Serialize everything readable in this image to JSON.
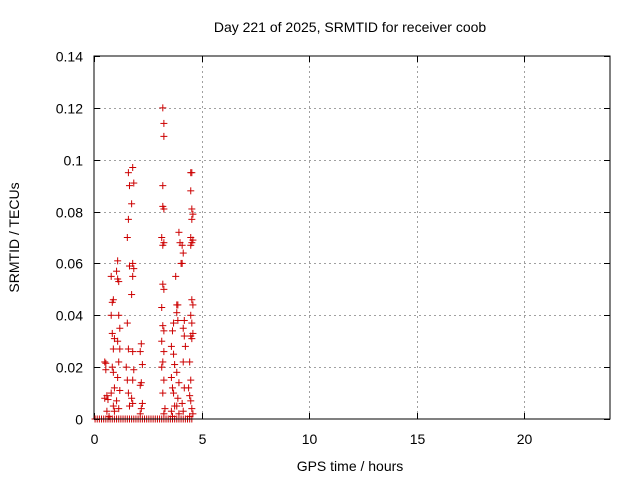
{
  "chart_data": {
    "type": "scatter",
    "title": "Day 221 of 2025, SRMTID for receiver coob",
    "xlabel": "GPS time / hours",
    "ylabel": "SRMTID / TECUs",
    "xlim": [
      0,
      24
    ],
    "ylim": [
      0,
      0.14
    ],
    "x_ticks": [
      0,
      5,
      10,
      15,
      20
    ],
    "y_ticks": [
      0,
      0.02,
      0.04,
      0.06,
      0.08,
      0.1,
      0.12,
      0.14
    ],
    "x_tick_labels": [
      "0",
      "5",
      "10",
      "15",
      "20"
    ],
    "y_tick_labels": [
      "0",
      "0.02",
      "0.04",
      "0.06",
      "0.08",
      "0.1",
      "0.12",
      "0.14"
    ],
    "grid": true,
    "marker": "+",
    "marker_color": "#cc0000",
    "series": [
      {
        "name": "SRMTID",
        "points": [
          [
            0.05,
            0
          ],
          [
            0.15,
            0
          ],
          [
            0.25,
            0
          ],
          [
            0.35,
            0
          ],
          [
            0.45,
            0
          ],
          [
            0.55,
            0
          ],
          [
            0.65,
            0
          ],
          [
            0.75,
            0
          ],
          [
            0.85,
            0
          ],
          [
            0.95,
            0
          ],
          [
            1.05,
            0
          ],
          [
            1.15,
            0
          ],
          [
            1.25,
            0
          ],
          [
            1.35,
            0
          ],
          [
            1.45,
            0
          ],
          [
            1.55,
            0
          ],
          [
            1.65,
            0
          ],
          [
            1.75,
            0
          ],
          [
            1.85,
            0
          ],
          [
            1.95,
            0
          ],
          [
            2.05,
            0
          ],
          [
            2.15,
            0
          ],
          [
            2.25,
            0
          ],
          [
            2.35,
            0
          ],
          [
            2.45,
            0
          ],
          [
            2.55,
            0
          ],
          [
            2.65,
            0
          ],
          [
            2.75,
            0
          ],
          [
            2.85,
            0
          ],
          [
            2.95,
            0
          ],
          [
            3.05,
            0
          ],
          [
            3.15,
            0
          ],
          [
            3.25,
            0
          ],
          [
            3.35,
            0
          ],
          [
            3.45,
            0
          ],
          [
            3.55,
            0
          ],
          [
            3.65,
            0
          ],
          [
            3.75,
            0
          ],
          [
            3.85,
            0
          ],
          [
            3.95,
            0
          ],
          [
            4.05,
            0
          ],
          [
            4.15,
            0
          ],
          [
            4.25,
            0
          ],
          [
            4.35,
            0
          ],
          [
            4.45,
            0
          ],
          [
            4.55,
            0
          ],
          [
            0.5,
            0.022
          ],
          [
            0.55,
            0.019
          ],
          [
            0.6,
            0.009
          ],
          [
            0.5,
            0.008
          ],
          [
            0.65,
            0.0075
          ],
          [
            0.7,
            0.001
          ],
          [
            0.6,
            0.003
          ],
          [
            0.55,
            0.0215
          ],
          [
            0.8,
            0.055
          ],
          [
            0.85,
            0.045
          ],
          [
            0.8,
            0.04
          ],
          [
            0.9,
            0.046
          ],
          [
            0.85,
            0.033
          ],
          [
            0.9,
            0.027
          ],
          [
            0.95,
            0.031
          ],
          [
            0.85,
            0.02
          ],
          [
            0.9,
            0.018
          ],
          [
            0.95,
            0.012
          ],
          [
            0.8,
            0.01
          ],
          [
            0.9,
            0.005
          ],
          [
            0.95,
            0.003
          ],
          [
            1.1,
            0.061
          ],
          [
            1.05,
            0.057
          ],
          [
            1.1,
            0.054
          ],
          [
            1.15,
            0.053
          ],
          [
            1.15,
            0.04
          ],
          [
            1.2,
            0.035
          ],
          [
            1.1,
            0.03
          ],
          [
            1.2,
            0.027
          ],
          [
            1.15,
            0.022
          ],
          [
            1.1,
            0.016
          ],
          [
            1.2,
            0.011
          ],
          [
            1.05,
            0.007
          ],
          [
            1.15,
            0.004
          ],
          [
            1.6,
            0.095
          ],
          [
            1.65,
            0.09
          ],
          [
            1.6,
            0.077
          ],
          [
            1.55,
            0.07
          ],
          [
            1.65,
            0.059
          ],
          [
            1.55,
            0.037
          ],
          [
            1.6,
            0.027
          ],
          [
            1.5,
            0.02
          ],
          [
            1.55,
            0.015
          ],
          [
            1.6,
            0.01
          ],
          [
            1.65,
            0.005
          ],
          [
            1.8,
            0.097
          ],
          [
            1.85,
            0.091
          ],
          [
            1.75,
            0.083
          ],
          [
            1.8,
            0.06
          ],
          [
            1.85,
            0.058
          ],
          [
            1.8,
            0.055
          ],
          [
            1.75,
            0.048
          ],
          [
            1.8,
            0.026
          ],
          [
            1.85,
            0.019
          ],
          [
            1.8,
            0.015
          ],
          [
            1.75,
            0.008
          ],
          [
            1.8,
            0.006
          ],
          [
            2.2,
            0.029
          ],
          [
            2.15,
            0.026
          ],
          [
            2.25,
            0.021
          ],
          [
            2.2,
            0.014
          ],
          [
            2.15,
            0.013
          ],
          [
            2.25,
            0.006
          ],
          [
            2.2,
            0.004
          ],
          [
            2.15,
            0.002
          ],
          [
            3.2,
            0.12
          ],
          [
            3.25,
            0.114
          ],
          [
            3.25,
            0.109
          ],
          [
            3.2,
            0.09
          ],
          [
            3.2,
            0.082
          ],
          [
            3.25,
            0.081
          ],
          [
            3.15,
            0.07
          ],
          [
            3.25,
            0.068
          ],
          [
            3.2,
            0.067
          ],
          [
            3.2,
            0.052
          ],
          [
            3.25,
            0.05
          ],
          [
            3.15,
            0.043
          ],
          [
            3.2,
            0.036
          ],
          [
            3.25,
            0.034
          ],
          [
            3.15,
            0.03
          ],
          [
            3.25,
            0.026
          ],
          [
            3.2,
            0.022
          ],
          [
            3.15,
            0.02
          ],
          [
            3.25,
            0.015
          ],
          [
            3.2,
            0.01
          ],
          [
            3.3,
            0.004
          ],
          [
            3.25,
            0.002
          ],
          [
            3.7,
            0.037
          ],
          [
            3.65,
            0.034
          ],
          [
            3.6,
            0.028
          ],
          [
            3.7,
            0.025
          ],
          [
            3.75,
            0.021
          ],
          [
            3.6,
            0.016
          ],
          [
            3.65,
            0.012
          ],
          [
            3.7,
            0.01
          ],
          [
            3.75,
            0.005
          ],
          [
            3.6,
            0.003
          ],
          [
            3.65,
            0.001
          ],
          [
            3.8,
            0.055
          ],
          [
            3.85,
            0.044
          ],
          [
            3.9,
            0.044
          ],
          [
            3.85,
            0.041
          ],
          [
            3.9,
            0.038
          ],
          [
            3.85,
            0.018
          ],
          [
            3.95,
            0.014
          ],
          [
            3.9,
            0.008
          ],
          [
            3.85,
            0.005
          ],
          [
            3.95,
            0.002
          ],
          [
            3.95,
            0.072
          ],
          [
            4.0,
            0.068
          ],
          [
            4.1,
            0.067
          ],
          [
            4.05,
            0.06
          ],
          [
            4.15,
            0.064
          ],
          [
            4.1,
            0.06
          ],
          [
            4.2,
            0.038
          ],
          [
            4.15,
            0.035
          ],
          [
            4.2,
            0.032
          ],
          [
            4.25,
            0.028
          ],
          [
            4.15,
            0.022
          ],
          [
            4.2,
            0.012
          ],
          [
            4.1,
            0.006
          ],
          [
            4.15,
            0.003
          ],
          [
            4.5,
            0.095
          ],
          [
            4.55,
            0.095
          ],
          [
            4.5,
            0.088
          ],
          [
            4.55,
            0.081
          ],
          [
            4.6,
            0.079
          ],
          [
            4.55,
            0.077
          ],
          [
            4.5,
            0.07
          ],
          [
            4.6,
            0.069
          ],
          [
            4.55,
            0.068
          ],
          [
            4.5,
            0.067
          ],
          [
            4.55,
            0.046
          ],
          [
            4.6,
            0.044
          ],
          [
            4.5,
            0.04
          ],
          [
            4.55,
            0.037
          ],
          [
            4.6,
            0.033
          ],
          [
            4.5,
            0.032
          ],
          [
            4.55,
            0.031
          ],
          [
            4.45,
            0.022
          ],
          [
            4.5,
            0.015
          ],
          [
            4.4,
            0.012
          ],
          [
            4.45,
            0.009
          ],
          [
            4.5,
            0.007
          ],
          [
            4.55,
            0.004
          ],
          [
            4.6,
            0.002
          ],
          [
            4.45,
            0.001
          ]
        ]
      }
    ]
  }
}
